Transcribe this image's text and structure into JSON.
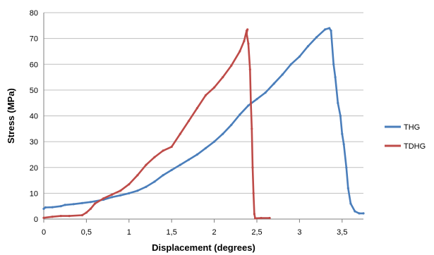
{
  "chart_data": {
    "type": "line",
    "title": "",
    "xlabel": "Displacement (degrees)",
    "ylabel": "Stress (MPa)",
    "xlim": [
      0,
      3.75
    ],
    "ylim": [
      0,
      80
    ],
    "x_ticks": [
      0,
      0.5,
      1,
      1.5,
      2,
      2.5,
      3,
      3.5
    ],
    "x_tick_labels": [
      "0",
      "0,5",
      "1",
      "1,5",
      "2",
      "2,5",
      "3",
      "3,5"
    ],
    "y_ticks": [
      0,
      10,
      20,
      30,
      40,
      50,
      60,
      70,
      80
    ],
    "y_tick_labels": [
      "0",
      "10",
      "20",
      "30",
      "40",
      "50",
      "60",
      "70",
      "80"
    ],
    "grid": "horizontal",
    "legend_position": "right",
    "series": [
      {
        "name": "THG",
        "color": "#4a7ebb",
        "points": [
          [
            0,
            4
          ],
          [
            0.02,
            4.5
          ],
          [
            0.1,
            4.6
          ],
          [
            0.2,
            5
          ],
          [
            0.25,
            5.5
          ],
          [
            0.35,
            5.8
          ],
          [
            0.45,
            6.2
          ],
          [
            0.55,
            6.6
          ],
          [
            0.7,
            7.5
          ],
          [
            0.8,
            8.5
          ],
          [
            0.9,
            9.2
          ],
          [
            1.0,
            10
          ],
          [
            1.1,
            11
          ],
          [
            1.2,
            12.5
          ],
          [
            1.3,
            14.5
          ],
          [
            1.4,
            17
          ],
          [
            1.5,
            19
          ],
          [
            1.6,
            21
          ],
          [
            1.7,
            23
          ],
          [
            1.8,
            25
          ],
          [
            1.9,
            27.5
          ],
          [
            2.0,
            30
          ],
          [
            2.1,
            33
          ],
          [
            2.2,
            36.5
          ],
          [
            2.3,
            40.5
          ],
          [
            2.4,
            44
          ],
          [
            2.5,
            46.5
          ],
          [
            2.6,
            49
          ],
          [
            2.7,
            52.5
          ],
          [
            2.8,
            56
          ],
          [
            2.9,
            60
          ],
          [
            3.0,
            63
          ],
          [
            3.1,
            67
          ],
          [
            3.2,
            70.5
          ],
          [
            3.3,
            73.5
          ],
          [
            3.35,
            74
          ],
          [
            3.37,
            73
          ],
          [
            3.4,
            60
          ],
          [
            3.42,
            55
          ],
          [
            3.45,
            45
          ],
          [
            3.48,
            40
          ],
          [
            3.5,
            33
          ],
          [
            3.52,
            29
          ],
          [
            3.55,
            20
          ],
          [
            3.57,
            12
          ],
          [
            3.6,
            6
          ],
          [
            3.65,
            3
          ],
          [
            3.7,
            2.2
          ],
          [
            3.75,
            2.2
          ]
        ]
      },
      {
        "name": "TDHG",
        "color": "#be4b48",
        "points": [
          [
            0,
            0.5
          ],
          [
            0.1,
            0.9
          ],
          [
            0.2,
            1.2
          ],
          [
            0.3,
            1.2
          ],
          [
            0.45,
            1.5
          ],
          [
            0.5,
            2.5
          ],
          [
            0.55,
            4
          ],
          [
            0.6,
            6
          ],
          [
            0.7,
            8
          ],
          [
            0.8,
            9.5
          ],
          [
            0.9,
            11
          ],
          [
            1.0,
            13.5
          ],
          [
            1.1,
            17
          ],
          [
            1.2,
            21
          ],
          [
            1.3,
            24
          ],
          [
            1.4,
            26.5
          ],
          [
            1.5,
            28
          ],
          [
            1.6,
            33
          ],
          [
            1.7,
            38
          ],
          [
            1.8,
            43
          ],
          [
            1.9,
            48
          ],
          [
            2.0,
            51
          ],
          [
            2.1,
            55
          ],
          [
            2.2,
            59.5
          ],
          [
            2.3,
            65
          ],
          [
            2.35,
            69
          ],
          [
            2.38,
            73
          ],
          [
            2.39,
            73.5
          ],
          [
            2.38,
            72
          ],
          [
            2.4,
            68
          ],
          [
            2.42,
            58
          ],
          [
            2.43,
            45
          ],
          [
            2.44,
            35
          ],
          [
            2.45,
            20
          ],
          [
            2.46,
            10
          ],
          [
            2.47,
            2
          ],
          [
            2.48,
            0.3
          ],
          [
            2.55,
            0.4
          ],
          [
            2.65,
            0.4
          ]
        ]
      }
    ]
  }
}
